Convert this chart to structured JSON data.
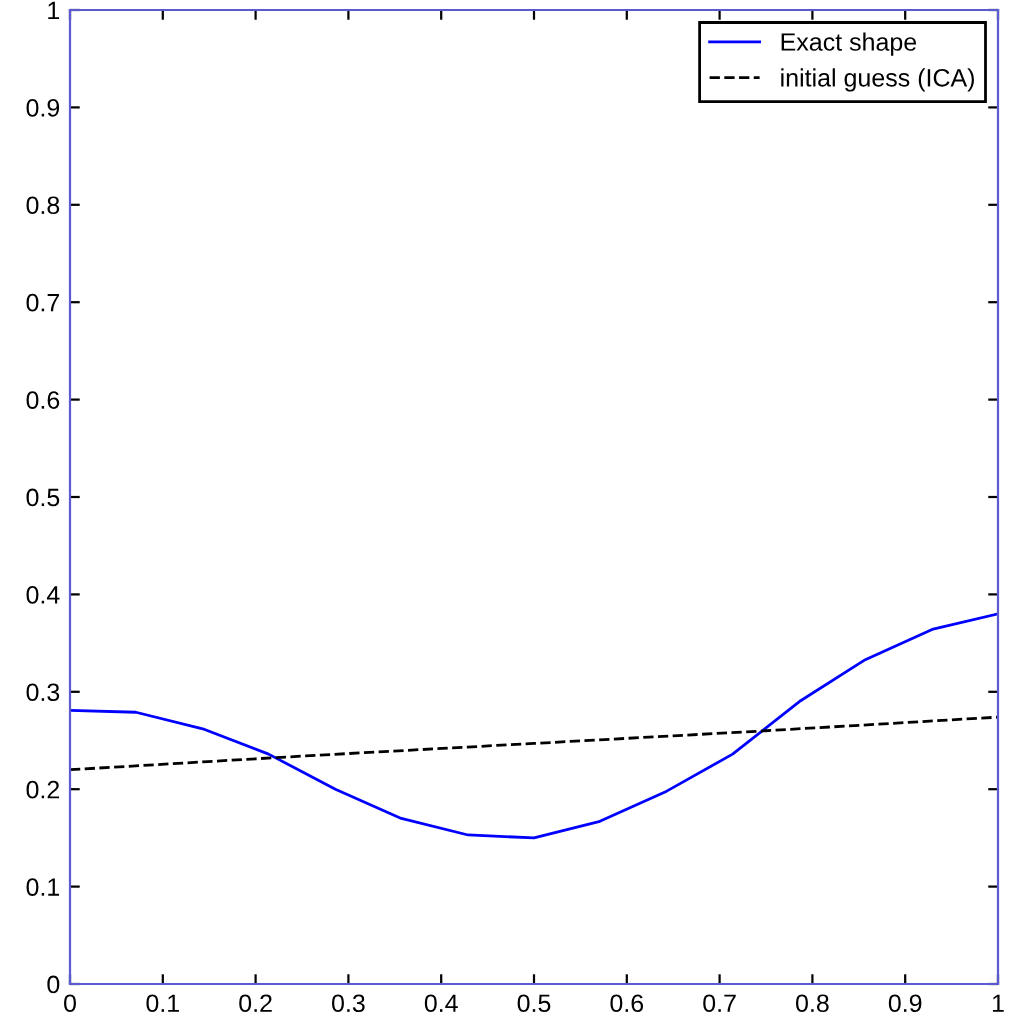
{
  "chart_data": {
    "type": "line",
    "xlim": [
      0,
      1
    ],
    "ylim": [
      0,
      1
    ],
    "xticks": [
      0,
      0.1,
      0.2,
      0.3,
      0.4,
      0.5,
      0.6,
      0.7,
      0.8,
      0.9,
      1
    ],
    "yticks": [
      0,
      0.1,
      0.2,
      0.3,
      0.4,
      0.5,
      0.6,
      0.7,
      0.8,
      0.9,
      1
    ],
    "grid": false,
    "legend": "top right",
    "series": [
      {
        "name": "Exact shape",
        "color": "#0000ff",
        "line_style": "solid",
        "x": [
          0,
          0.071,
          0.143,
          0.214,
          0.286,
          0.357,
          0.429,
          0.5,
          0.571,
          0.643,
          0.714,
          0.786,
          0.857,
          0.929,
          1
        ],
        "values": [
          0.281,
          0.279,
          0.262,
          0.236,
          0.2,
          0.17,
          0.153,
          0.15,
          0.167,
          0.198,
          0.236,
          0.29,
          0.333,
          0.364,
          0.38
        ]
      },
      {
        "name": "initial guess (ICA)",
        "color": "#000000",
        "line_style": "dashed",
        "x": [
          0,
          0.25,
          0.5,
          0.75,
          1
        ],
        "values": [
          0.22,
          0.234,
          0.247,
          0.26,
          0.274
        ]
      }
    ]
  }
}
